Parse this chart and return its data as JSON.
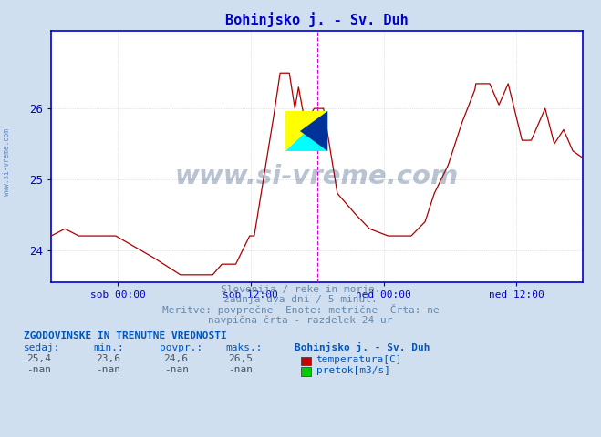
{
  "title": "Bohinjsko j. - Sv. Duh",
  "title_color": "#0000cc",
  "bg_color": "#d0dff0",
  "plot_bg_color": "#ffffff",
  "grid_color": "#c0c8d8",
  "line_color": "#aa0000",
  "axis_color": "#0000cc",
  "yticks": [
    24,
    25,
    26
  ],
  "ymin": 23.55,
  "ymax": 27.1,
  "xmin": 0,
  "xmax": 576,
  "xtick_positions": [
    72,
    216,
    360,
    504
  ],
  "xtick_labels": [
    "sob 00:00",
    "sob 12:00",
    "ned 00:00",
    "ned 12:00"
  ],
  "vline_positions": [
    288,
    576
  ],
  "vline_color": "#dd00dd",
  "info_line1": "Slovenija / reke in morje.",
  "info_line2": "zadnja dva dni / 5 minut.",
  "info_line3": "Meritve: povprečne  Enote: metrične  Črta: ne",
  "info_line4": "navpična črta - razdelek 24 ur",
  "table_header": "ZGODOVINSKE IN TRENUTNE VREDNOSTI",
  "col_sedaj": "sedaj:",
  "col_min": "min.:",
  "col_povpr": "povpr.:",
  "col_maks": "maks.:",
  "col_name": "Bohinjsko j. - Sv. Duh",
  "row1_vals": [
    "25,4",
    "23,6",
    "24,6",
    "26,5"
  ],
  "row2_vals": [
    "-nan",
    "-nan",
    "-nan",
    "-nan"
  ],
  "legend1_label": "temperatura[C]",
  "legend1_color": "#cc0000",
  "legend2_label": "pretok[m3/s]",
  "legend2_color": "#00cc00",
  "watermark": "www.si-vreme.com",
  "watermark_color": "#1a3a6a",
  "side_text": "www.si-vreme.com",
  "text_color": "#6688aa",
  "table_color": "#0055bb"
}
